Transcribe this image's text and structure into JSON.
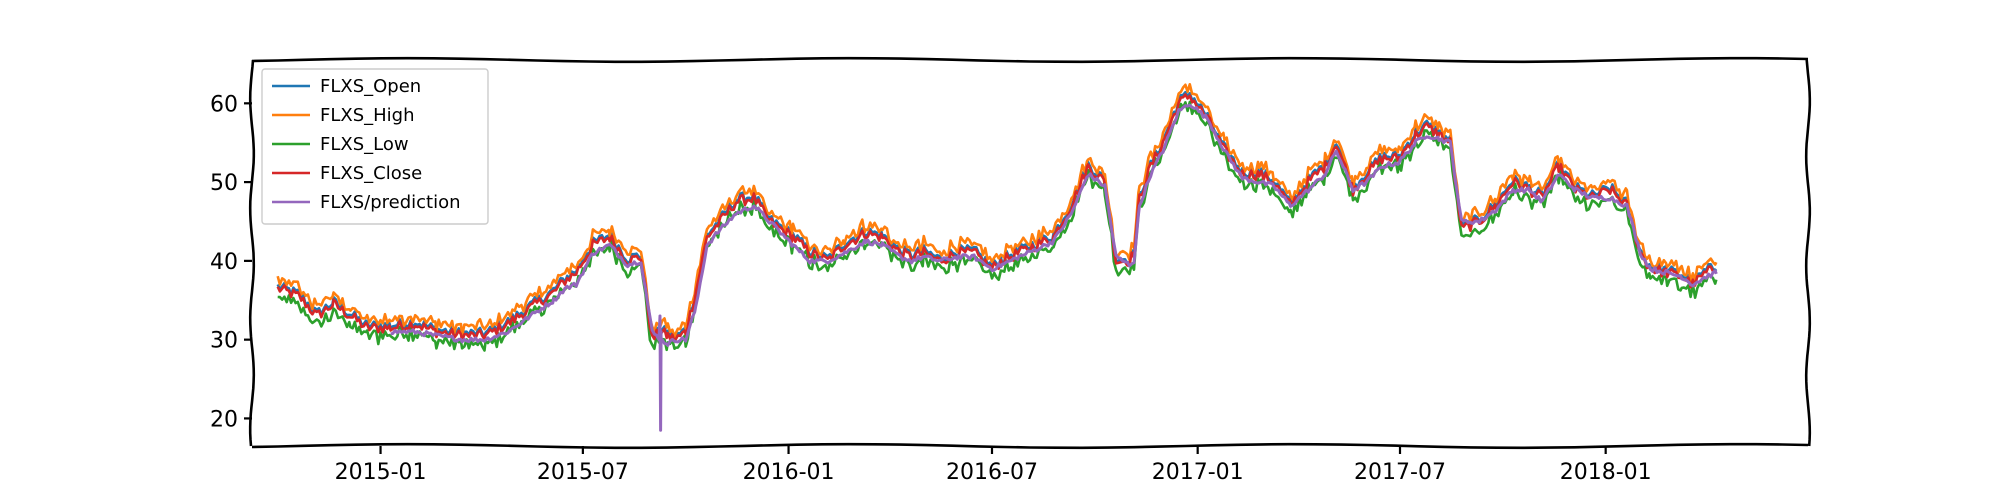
{
  "chart_data": {
    "type": "line",
    "title": "",
    "xlabel": "",
    "ylabel": "",
    "x_ticks": [
      "2015-01",
      "2015-07",
      "2016-01",
      "2016-07",
      "2017-01",
      "2017-07",
      "2018-01"
    ],
    "y_ticks": [
      20,
      30,
      40,
      50,
      60
    ],
    "xlim": [
      "2014-09-08",
      "2018-07-01"
    ],
    "ylim": [
      16.5,
      65.5
    ],
    "grid": false,
    "legend_position": "top-left",
    "style": "xkcd-sketch",
    "colors": {
      "FLXS_Open": "#1f77b4",
      "FLXS_High": "#ff7f0e",
      "FLXS_Low": "#2ca02c",
      "FLXS_Close": "#d62728",
      "FLXS/prediction": "#9467bd"
    },
    "anchors": {
      "dates": [
        "2014-10-01",
        "2014-10-20",
        "2014-11-05",
        "2014-11-20",
        "2014-12-05",
        "2014-12-20",
        "2015-01-10",
        "2015-02-01",
        "2015-02-20",
        "2015-03-15",
        "2015-04-05",
        "2015-04-25",
        "2015-05-15",
        "2015-06-05",
        "2015-06-15",
        "2015-06-25",
        "2015-07-10",
        "2015-07-25",
        "2015-08-10",
        "2015-08-22",
        "2015-09-01",
        "2015-09-08",
        "2015-09-15",
        "2015-09-22",
        "2015-10-01",
        "2015-10-10",
        "2015-10-20",
        "2015-11-01",
        "2015-11-15",
        "2015-12-01",
        "2015-12-15",
        "2016-01-05",
        "2016-01-20",
        "2016-02-05",
        "2016-02-20",
        "2016-03-10",
        "2016-03-25",
        "2016-04-10",
        "2016-04-20",
        "2016-05-01",
        "2016-05-15",
        "2016-06-01",
        "2016-06-15",
        "2016-07-01",
        "2016-07-10",
        "2016-07-25",
        "2016-08-10",
        "2016-08-25",
        "2016-09-10",
        "2016-09-25",
        "2016-10-10",
        "2016-10-20",
        "2016-11-01",
        "2016-11-05",
        "2016-11-10",
        "2016-11-20",
        "2016-12-01",
        "2016-12-15",
        "2016-12-25",
        "2017-01-10",
        "2017-01-25",
        "2017-02-10",
        "2017-02-25",
        "2017-03-10",
        "2017-03-25",
        "2017-04-10",
        "2017-04-25",
        "2017-05-05",
        "2017-05-20",
        "2017-06-01",
        "2017-06-15",
        "2017-06-30",
        "2017-07-15",
        "2017-07-25",
        "2017-08-05",
        "2017-08-15",
        "2017-08-25",
        "2017-09-10",
        "2017-09-25",
        "2017-10-10",
        "2017-10-25",
        "2017-11-05",
        "2017-11-20",
        "2017-12-05",
        "2017-12-20",
        "2018-01-05",
        "2018-01-20",
        "2018-02-01",
        "2018-02-10",
        "2018-02-25",
        "2018-03-10",
        "2018-03-20",
        "2018-04-01",
        "2018-04-10"
      ],
      "close": [
        36.5,
        35.5,
        33,
        34.5,
        33,
        31.5,
        31.5,
        32,
        31,
        30.5,
        30.5,
        32,
        34,
        36,
        37.5,
        38.5,
        42,
        43,
        40,
        40.5,
        30,
        31,
        30.5,
        30,
        31,
        36,
        43,
        45,
        47.5,
        48,
        45,
        43,
        41,
        40,
        42,
        43.5,
        43,
        41,
        40.5,
        41,
        40,
        41,
        41,
        39,
        40,
        41,
        42,
        43,
        47,
        52,
        50,
        40,
        40,
        41,
        48,
        52,
        55,
        60,
        61,
        58,
        54,
        51,
        51,
        50,
        47,
        50,
        52,
        55,
        49,
        51,
        53,
        53,
        56,
        57,
        56,
        55,
        44,
        45,
        47,
        50,
        49,
        48,
        52,
        49,
        48,
        49,
        47,
        41,
        39,
        38.5,
        38,
        37,
        38.5,
        39
      ],
      "prediction": [
        null,
        null,
        null,
        null,
        null,
        null,
        31,
        31,
        30.5,
        30,
        30,
        31,
        33,
        35,
        36.5,
        37,
        41,
        42,
        39.5,
        40,
        31,
        30,
        29.5,
        30,
        30,
        34,
        42,
        44,
        46,
        47,
        45,
        42,
        40,
        40,
        41,
        42.5,
        42,
        40.5,
        40,
        40.5,
        40,
        40.5,
        40.5,
        39,
        39.5,
        40.5,
        41.5,
        42.5,
        46,
        51,
        49.5,
        40.5,
        39.5,
        40,
        47,
        51,
        54,
        59,
        60,
        58,
        54,
        50.5,
        50,
        49.5,
        47,
        49,
        51,
        54,
        49,
        50,
        52,
        52.5,
        55,
        56,
        55.5,
        55,
        45,
        45,
        46.5,
        49,
        49,
        47.5,
        51,
        49,
        48,
        48,
        47,
        41,
        39,
        38.5,
        38,
        37,
        38,
        38.5
      ]
    },
    "series": [
      {
        "name": "FLXS_Open",
        "relation": "close + 0.3 (daily)"
      },
      {
        "name": "FLXS_High",
        "relation": "close + ~1.0 (daily)"
      },
      {
        "name": "FLXS_Low",
        "relation": "close - ~1.0 (daily)"
      },
      {
        "name": "FLXS_Close",
        "relation": "close (daily)"
      },
      {
        "name": "FLXS/prediction",
        "relation": "prediction (daily), spike to 18.5 around 2015-09-08"
      }
    ],
    "notes": {
      "prediction_spike": {
        "date": "2015-09-08",
        "low": 18.5,
        "high": 33
      }
    }
  },
  "legend": {
    "items": [
      {
        "label": "FLXS_Open",
        "color": "#1f77b4"
      },
      {
        "label": "FLXS_High",
        "color": "#ff7f0e"
      },
      {
        "label": "FLXS_Low",
        "color": "#2ca02c"
      },
      {
        "label": "FLXS_Close",
        "color": "#d62728"
      },
      {
        "label": "FLXS/prediction",
        "color": "#9467bd"
      }
    ]
  }
}
